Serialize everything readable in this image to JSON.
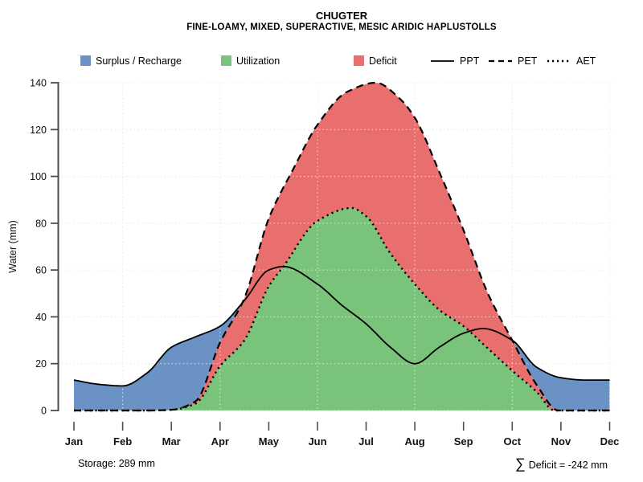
{
  "title": "CHUGTER",
  "subtitle": "FINE-LOAMY, MIXED, SUPERACTIVE, MESIC ARIDIC HAPLUSTOLLS",
  "y_axis": {
    "label": "Water (mm)",
    "ticks": [
      0,
      20,
      40,
      60,
      80,
      100,
      120,
      140
    ]
  },
  "x_axis": {
    "months": [
      "Jan",
      "Feb",
      "Mar",
      "Apr",
      "May",
      "Jun",
      "Jul",
      "Aug",
      "Sep",
      "Oct",
      "Nov",
      "Dec"
    ]
  },
  "legend": {
    "fills": [
      {
        "label": "Surplus / Recharge",
        "color_key": "surplus"
      },
      {
        "label": "Utilization",
        "color_key": "utilization"
      },
      {
        "label": "Deficit",
        "color_key": "deficit"
      }
    ],
    "lines": [
      {
        "label": "PPT",
        "style": "solid"
      },
      {
        "label": "PET",
        "style": "dashed"
      },
      {
        "label": "AET",
        "style": "dotted"
      }
    ]
  },
  "annotations": {
    "storage": "Storage: 289 mm",
    "sigma_symbol": "∑",
    "deficit_sum": "Deficit = -242 mm"
  },
  "colors": {
    "surplus": "#6b92c4",
    "utilization": "#79c37b",
    "deficit": "#e96e6e",
    "curve": "#000000",
    "axis": "#4d4d4d",
    "grid_under": "#c9c9c9",
    "grid_over": "rgba(255,255,255,0.75)"
  },
  "chart_data": {
    "type": "area",
    "title": "CHUGTER",
    "subtitle": "FINE-LOAMY, MIXED, SUPERACTIVE, MESIC ARIDIC HAPLUSTOLLS",
    "xlabel": "",
    "ylabel": "Water (mm)",
    "ylim": [
      0,
      140
    ],
    "grid": true,
    "grid_vertical_months": [
      "Feb",
      "Apr",
      "Jun",
      "Aug",
      "Oct",
      "Dec"
    ],
    "legend_position": "top",
    "categories": [
      "Jan",
      "Feb",
      "Mar",
      "Apr",
      "May",
      "Jun",
      "Jul",
      "Aug",
      "Sep",
      "Oct",
      "Nov",
      "Dec"
    ],
    "series": [
      {
        "name": "PPT",
        "values": [
          13,
          11,
          27,
          36,
          60,
          54,
          37,
          20,
          33,
          30,
          14,
          13
        ]
      },
      {
        "name": "PET",
        "values": [
          0,
          0,
          0,
          29,
          82,
          122,
          139,
          125,
          77,
          30,
          0,
          0
        ]
      },
      {
        "name": "AET",
        "values": [
          0,
          0,
          0,
          19,
          53,
          81,
          83,
          54,
          36,
          17,
          0,
          0
        ]
      }
    ],
    "areas": [
      {
        "name": "Surplus / Recharge",
        "between": [
          "PPT",
          "PET"
        ],
        "where": "PPT > PET"
      },
      {
        "name": "Utilization",
        "between": [
          "AET",
          "zero"
        ]
      },
      {
        "name": "Deficit",
        "between": [
          "PET",
          "AET"
        ]
      }
    ],
    "annotations": {
      "storage_mm": 289,
      "sum_deficit_mm": -242
    },
    "curve_control_points": {
      "comment": "x in month units (0=Jan tick .. 11=Dec tick), y in mm; sampled from smoothed curves",
      "PPT": [
        [
          0,
          13
        ],
        [
          0.5,
          11.2
        ],
        [
          1,
          10.5
        ],
        [
          1.5,
          16
        ],
        [
          2,
          27
        ],
        [
          2.5,
          31.5
        ],
        [
          3,
          36
        ],
        [
          3.5,
          47
        ],
        [
          4,
          60
        ],
        [
          4.3,
          61.5
        ],
        [
          5,
          54
        ],
        [
          5.5,
          45
        ],
        [
          6,
          37
        ],
        [
          6.5,
          27
        ],
        [
          7,
          20
        ],
        [
          7.5,
          27
        ],
        [
          8,
          33
        ],
        [
          8.4,
          35
        ],
        [
          9,
          30
        ],
        [
          9.5,
          18.5
        ],
        [
          10,
          14
        ],
        [
          10.5,
          13
        ],
        [
          11,
          13
        ]
      ],
      "PET": [
        [
          0,
          0
        ],
        [
          0.5,
          0
        ],
        [
          1,
          0
        ],
        [
          1.5,
          0
        ],
        [
          2,
          0.3
        ],
        [
          2.5,
          4
        ],
        [
          3,
          29
        ],
        [
          3.5,
          48
        ],
        [
          4,
          82
        ],
        [
          4.5,
          103
        ],
        [
          5,
          122
        ],
        [
          5.6,
          136
        ],
        [
          6.2,
          140
        ],
        [
          6.7,
          133
        ],
        [
          7,
          125
        ],
        [
          7.5,
          102
        ],
        [
          8,
          77
        ],
        [
          8.5,
          50
        ],
        [
          9,
          30
        ],
        [
          9.5,
          11
        ],
        [
          9.95,
          0
        ],
        [
          10.4,
          0
        ],
        [
          11,
          0
        ]
      ],
      "AET": [
        [
          0,
          0
        ],
        [
          0.5,
          0
        ],
        [
          1,
          0
        ],
        [
          1.5,
          0
        ],
        [
          2,
          0.3
        ],
        [
          2.5,
          3
        ],
        [
          3,
          19
        ],
        [
          3.5,
          30
        ],
        [
          4,
          53
        ],
        [
          4.3,
          61.5
        ],
        [
          5,
          81
        ],
        [
          5.7,
          86.5
        ],
        [
          6,
          83
        ],
        [
          6.5,
          67
        ],
        [
          7,
          54
        ],
        [
          7.5,
          43
        ],
        [
          8,
          36
        ],
        [
          8.5,
          26.5
        ],
        [
          9,
          17
        ],
        [
          9.5,
          8
        ],
        [
          9.87,
          0
        ],
        [
          10.4,
          0
        ],
        [
          11,
          0
        ]
      ]
    }
  }
}
